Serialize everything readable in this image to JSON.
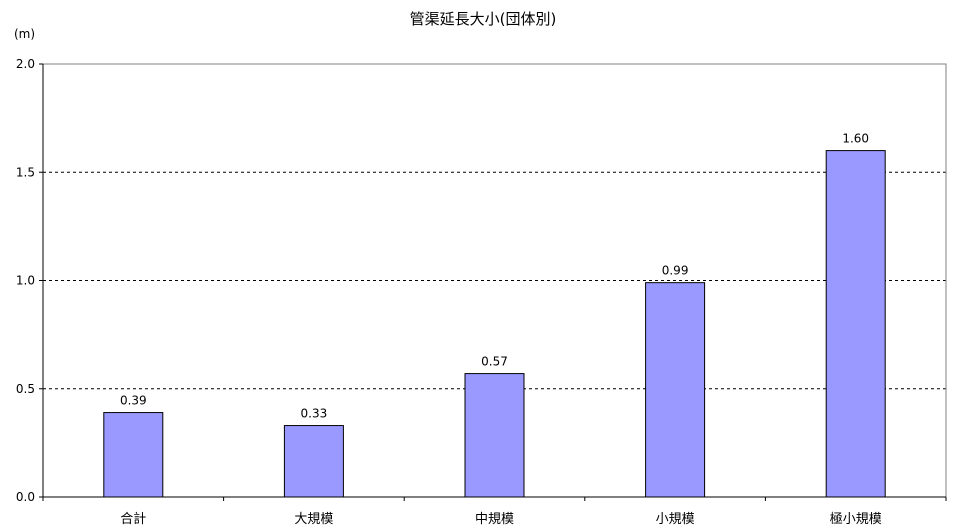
{
  "chart_data": {
    "type": "bar",
    "title": "管渠延長大小(団体別)",
    "ylabel": "(m)",
    "xlabel": "",
    "categories": [
      "合計",
      "大規模",
      "中規模",
      "小規模",
      "極小規模"
    ],
    "values": [
      0.39,
      0.33,
      0.57,
      0.99,
      1.6
    ],
    "value_labels": [
      "0.39",
      "0.33",
      "0.57",
      "0.99",
      "1.60"
    ],
    "ylim": [
      0,
      2.0
    ],
    "yticks": [
      "0.0",
      "0.5",
      "1.0",
      "1.5",
      "2.0"
    ],
    "grid": true,
    "bar_color": "#9999ff",
    "bar_border": "#000000"
  }
}
